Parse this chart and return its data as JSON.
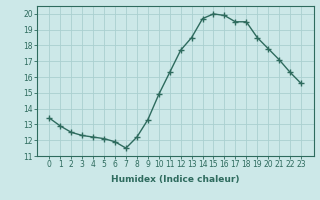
{
  "x": [
    0,
    1,
    2,
    3,
    4,
    5,
    6,
    7,
    8,
    9,
    10,
    11,
    12,
    13,
    14,
    15,
    16,
    17,
    18,
    19,
    20,
    21,
    22,
    23
  ],
  "y": [
    13.4,
    12.9,
    12.5,
    12.3,
    12.2,
    12.1,
    11.9,
    11.5,
    12.2,
    13.3,
    14.9,
    16.3,
    17.7,
    18.5,
    19.7,
    20.0,
    19.9,
    19.5,
    19.5,
    18.5,
    17.8,
    17.1,
    16.3,
    15.6
  ],
  "line_color": "#2e6b5e",
  "bg_color": "#cce8e8",
  "grid_color": "#aad0d0",
  "xlabel": "Humidex (Indice chaleur)",
  "ylim": [
    11,
    20.5
  ],
  "yticks": [
    11,
    12,
    13,
    14,
    15,
    16,
    17,
    18,
    19,
    20
  ],
  "xticks": [
    0,
    1,
    2,
    3,
    4,
    5,
    6,
    7,
    8,
    9,
    10,
    11,
    12,
    13,
    14,
    15,
    16,
    17,
    18,
    19,
    20,
    21,
    22,
    23
  ],
  "marker": "+",
  "markersize": 4,
  "linewidth": 1.0,
  "tick_fontsize": 5.5,
  "xlabel_fontsize": 6.5
}
